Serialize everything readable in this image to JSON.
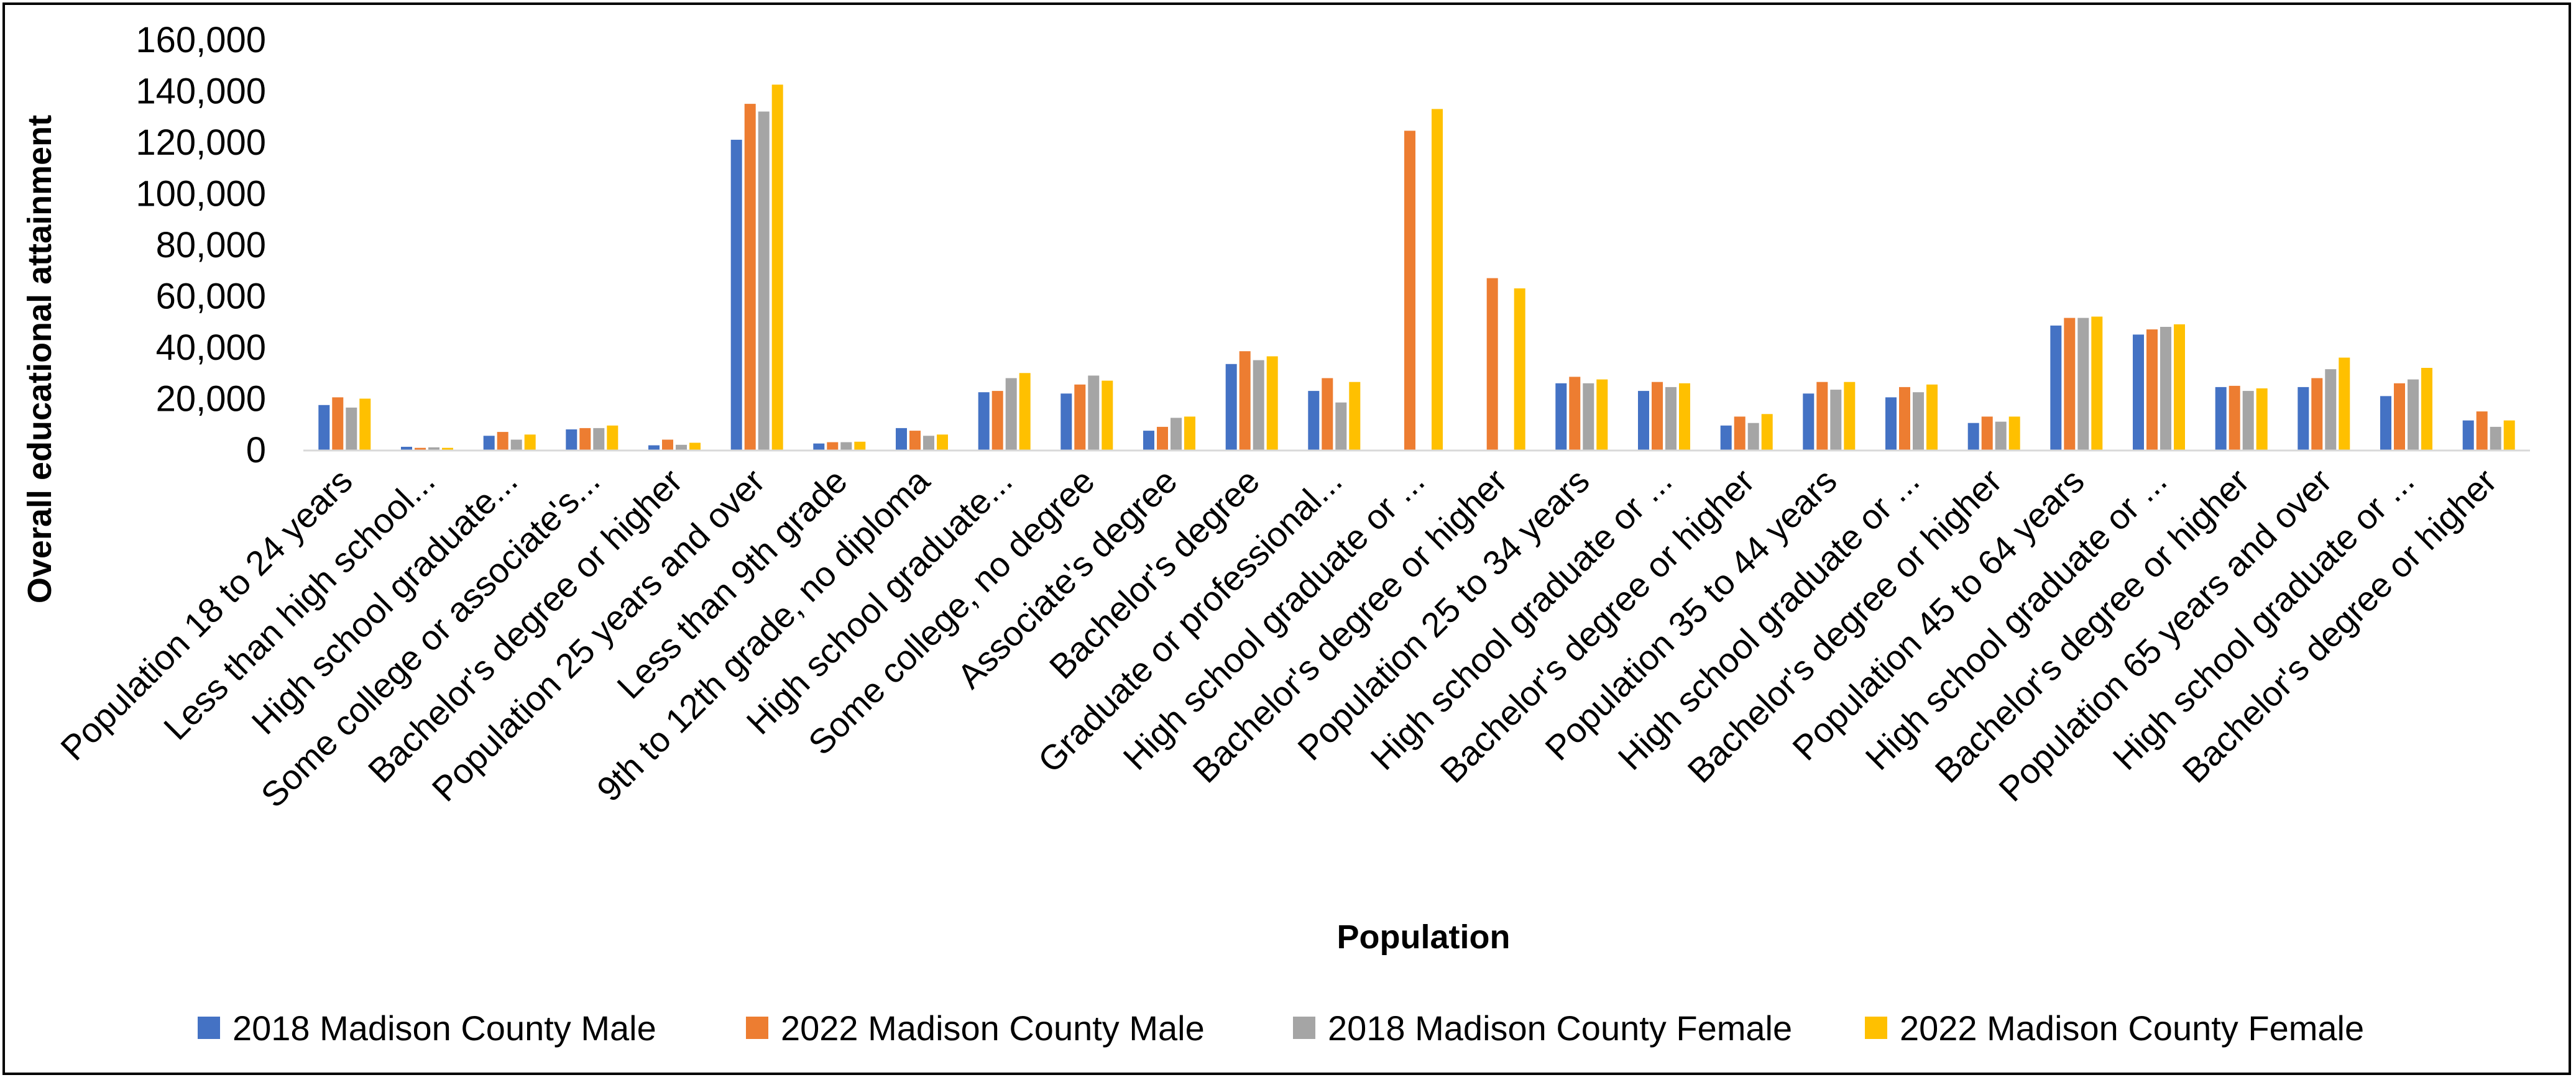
{
  "chart_data": {
    "type": "bar",
    "title": "",
    "xlabel": "Population",
    "ylabel": "Overall educational attainment",
    "ylim": [
      0,
      160000
    ],
    "yticks": [
      0,
      20000,
      40000,
      60000,
      80000,
      100000,
      120000,
      140000,
      160000
    ],
    "ytick_labels": [
      "0",
      "20,000",
      "40,000",
      "60,000",
      "80,000",
      "100,000",
      "120,000",
      "140,000",
      "160,000"
    ],
    "grid": false,
    "legend_position": "bottom",
    "categories": [
      "Population 18 to 24 years",
      "Less than high school...",
      "High school graduate...",
      "Some college or associate's...",
      "Bachelor's degree or higher",
      "Population 25 years and over",
      "Less than 9th grade",
      "9th to 12th grade, no diploma",
      "High school graduate...",
      "Some college, no degree",
      "Associate's degree",
      "Bachelor's degree",
      "Graduate or professional...",
      "High school graduate or ...",
      "Bachelor's degree or higher",
      "Population 25 to 34 years",
      "High school graduate or ...",
      "Bachelor's degree or higher",
      "Population 35 to 44 years",
      "High school graduate or ...",
      "Bachelor's degree or higher",
      "Population 45 to 64 years",
      "High school graduate or ...",
      "Bachelor's degree or higher",
      "Population 65 years and over",
      "High school graduate or ...",
      "Bachelor's degree or higher"
    ],
    "series": [
      {
        "name": "2018 Madison County Male",
        "color": "#4472C4",
        "values": [
          17500,
          1200,
          5500,
          8000,
          1800,
          121000,
          2500,
          8500,
          22500,
          22000,
          7500,
          33500,
          23000,
          0,
          0,
          26000,
          23000,
          9500,
          22000,
          20500,
          10500,
          48500,
          45000,
          24500,
          24500,
          21000,
          11500
        ]
      },
      {
        "name": "2022 Madison County Male",
        "color": "#ED7D31",
        "values": [
          20500,
          800,
          7000,
          8500,
          4000,
          135000,
          3000,
          7500,
          23000,
          25500,
          9000,
          38500,
          28000,
          124500,
          67000,
          28500,
          26500,
          13000,
          26500,
          24500,
          13000,
          51500,
          47000,
          25000,
          28000,
          26000,
          15000
        ]
      },
      {
        "name": "2018 Madison County Female",
        "color": "#A5A5A5",
        "values": [
          16500,
          1000,
          4000,
          8500,
          2000,
          132000,
          3000,
          5500,
          28000,
          29000,
          12500,
          35000,
          18500,
          0,
          0,
          26000,
          24500,
          10500,
          23500,
          22500,
          11000,
          51500,
          48000,
          23000,
          31500,
          27500,
          9000
        ]
      },
      {
        "name": "2022 Madison County Female",
        "color": "#FFC000",
        "values": [
          20000,
          800,
          6000,
          9500,
          2800,
          142500,
          3200,
          6000,
          30000,
          27000,
          13000,
          36500,
          26500,
          133000,
          63000,
          27500,
          26000,
          14000,
          26500,
          25500,
          13000,
          52000,
          49000,
          24000,
          36000,
          32000,
          11500
        ]
      }
    ]
  }
}
